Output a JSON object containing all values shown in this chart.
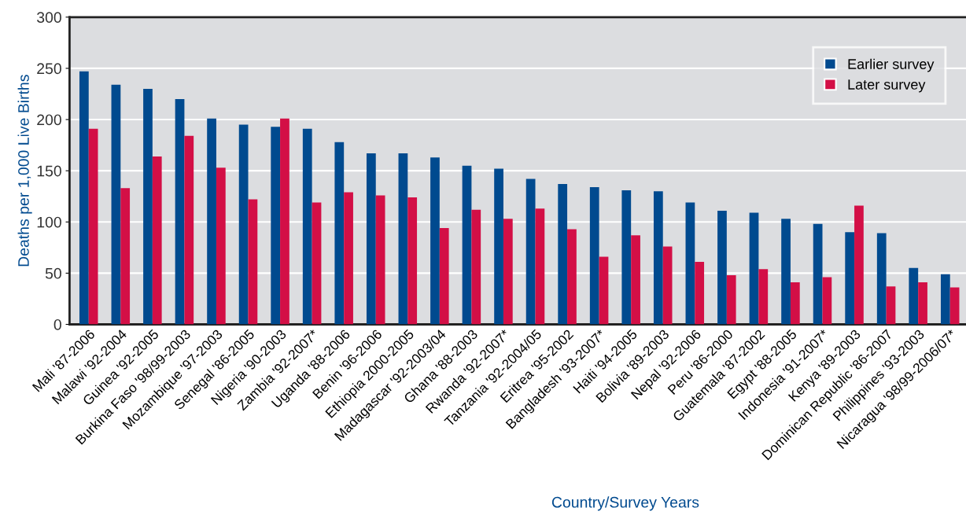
{
  "chart_data": {
    "type": "bar",
    "xlabel": "Country/Survey Years",
    "ylabel": "Deaths per 1,000 Live Births",
    "categories": [
      "Mali '87-2006",
      "Malawi '92-2004",
      "Guinea '92-2005",
      "Burkina Faso '98/99-2003",
      "Mozambique '97-2003",
      "Senegal '86-2005",
      "Nigeria '90-2003",
      "Zambia '92-2007*",
      "Uganda '88-2006",
      "Benin '96-2006",
      "Ethiopia 2000-2005",
      "Madagascar '92-2003/04",
      "Ghana '88-2003",
      "Rwanda '92-2007*",
      "Tanzania '92-2004/05",
      "Eritrea '95-2002",
      "Bangladesh '93-2007*",
      "Haiti '94-2005",
      "Bolivia '89-2003",
      "Nepal '92-2006",
      "Peru '86-2000",
      "Guatemala '87-2002",
      "Egypt '88-2005",
      "Indonesia '91-2007*",
      "Kenya '89-2003",
      "Dominican Republic '86-2007",
      "Philippines '93-2003",
      "Nicaragua '98/99-2006/07*"
    ],
    "series": [
      {
        "name": "Earlier survey",
        "color": "#004a8f",
        "values": [
          247,
          234,
          230,
          220,
          201,
          195,
          193,
          191,
          178,
          167,
          167,
          163,
          155,
          152,
          142,
          137,
          134,
          131,
          130,
          119,
          111,
          109,
          103,
          98,
          90,
          89,
          55,
          49
        ]
      },
      {
        "name": "Later survey",
        "color": "#d30f46",
        "values": [
          191,
          133,
          164,
          184,
          153,
          122,
          201,
          119,
          129,
          126,
          124,
          94,
          112,
          103,
          113,
          93,
          66,
          87,
          76,
          61,
          48,
          54,
          41,
          46,
          116,
          37,
          41,
          36
        ]
      }
    ],
    "ylim": [
      0,
      300
    ],
    "yticks": [
      0,
      50,
      100,
      150,
      200,
      250,
      300
    ],
    "grid": "y",
    "legend": "top right"
  }
}
